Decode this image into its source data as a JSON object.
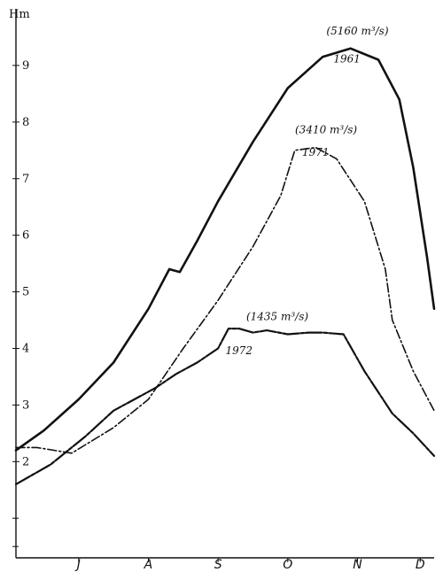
{
  "chart_data": {
    "type": "line",
    "ylabel": "Hm",
    "ylim": [
      0.3,
      10
    ],
    "y_ticks": [
      2,
      3,
      4,
      5,
      6,
      7,
      8,
      9
    ],
    "y_tick_labels": [
      "2",
      "3",
      "4",
      "5",
      "6",
      "7",
      "8",
      "9"
    ],
    "x_range": [
      6.6,
      12.6
    ],
    "months": [
      {
        "label": "J",
        "x": 7.5
      },
      {
        "label": "A",
        "x": 8.5
      },
      {
        "label": "S",
        "x": 9.5
      },
      {
        "label": "O",
        "x": 10.5
      },
      {
        "label": "N",
        "x": 11.5
      },
      {
        "label": "D",
        "x": 12.4
      }
    ],
    "series": [
      {
        "name": "1961",
        "discharge_label": "(5160 m³/s)",
        "style": "solid",
        "points": [
          [
            6.6,
            2.2
          ],
          [
            7.0,
            2.55
          ],
          [
            7.5,
            3.1
          ],
          [
            8.0,
            3.75
          ],
          [
            8.5,
            4.7
          ],
          [
            8.8,
            5.4
          ],
          [
            8.95,
            5.35
          ],
          [
            9.2,
            5.9
          ],
          [
            9.5,
            6.6
          ],
          [
            10.0,
            7.65
          ],
          [
            10.5,
            8.6
          ],
          [
            11.0,
            9.15
          ],
          [
            11.4,
            9.3
          ],
          [
            11.8,
            9.1
          ],
          [
            12.1,
            8.4
          ],
          [
            12.3,
            7.2
          ],
          [
            12.5,
            5.6
          ],
          [
            12.6,
            4.7
          ]
        ]
      },
      {
        "name": "1971",
        "discharge_label": "(3410 m³/s)",
        "style": "dash-dot",
        "points": [
          [
            6.6,
            2.25
          ],
          [
            6.9,
            2.25
          ],
          [
            7.4,
            2.15
          ],
          [
            8.0,
            2.6
          ],
          [
            8.5,
            3.1
          ],
          [
            9.0,
            4.0
          ],
          [
            9.5,
            4.85
          ],
          [
            10.0,
            5.8
          ],
          [
            10.4,
            6.7
          ],
          [
            10.6,
            7.5
          ],
          [
            10.9,
            7.55
          ],
          [
            11.2,
            7.35
          ],
          [
            11.6,
            6.6
          ],
          [
            11.9,
            5.4
          ],
          [
            12.0,
            4.5
          ],
          [
            12.3,
            3.6
          ],
          [
            12.6,
            2.9
          ]
        ]
      },
      {
        "name": "1972",
        "discharge_label": "(1435 m³/s)",
        "style": "solid-dash",
        "points": [
          [
            6.6,
            1.6
          ],
          [
            7.1,
            1.95
          ],
          [
            7.6,
            2.45
          ],
          [
            8.0,
            2.9
          ],
          [
            8.3,
            3.1
          ],
          [
            8.6,
            3.3
          ],
          [
            8.9,
            3.55
          ],
          [
            9.2,
            3.75
          ],
          [
            9.5,
            4.0
          ],
          [
            9.65,
            4.35
          ],
          [
            9.8,
            4.35
          ],
          [
            10.0,
            4.28
          ],
          [
            10.2,
            4.32
          ],
          [
            10.5,
            4.25
          ],
          [
            10.8,
            4.28
          ],
          [
            11.0,
            4.28
          ],
          [
            11.3,
            4.25
          ],
          [
            11.6,
            3.6
          ],
          [
            12.0,
            2.85
          ],
          [
            12.3,
            2.5
          ],
          [
            12.6,
            2.1
          ]
        ]
      }
    ],
    "annotations": [
      {
        "text": "(5160 m³/s)",
        "x": 11.5,
        "y": 9.55
      },
      {
        "text": "1961",
        "x": 11.35,
        "y": 9.05
      },
      {
        "text": "(3410 m³/s)",
        "x": 11.05,
        "y": 7.8
      },
      {
        "text": "1971",
        "x": 10.9,
        "y": 7.4
      },
      {
        "text": "(1435 m³/s)",
        "x": 10.35,
        "y": 4.5
      },
      {
        "text": "1972",
        "x": 9.8,
        "y": 3.9
      }
    ]
  }
}
